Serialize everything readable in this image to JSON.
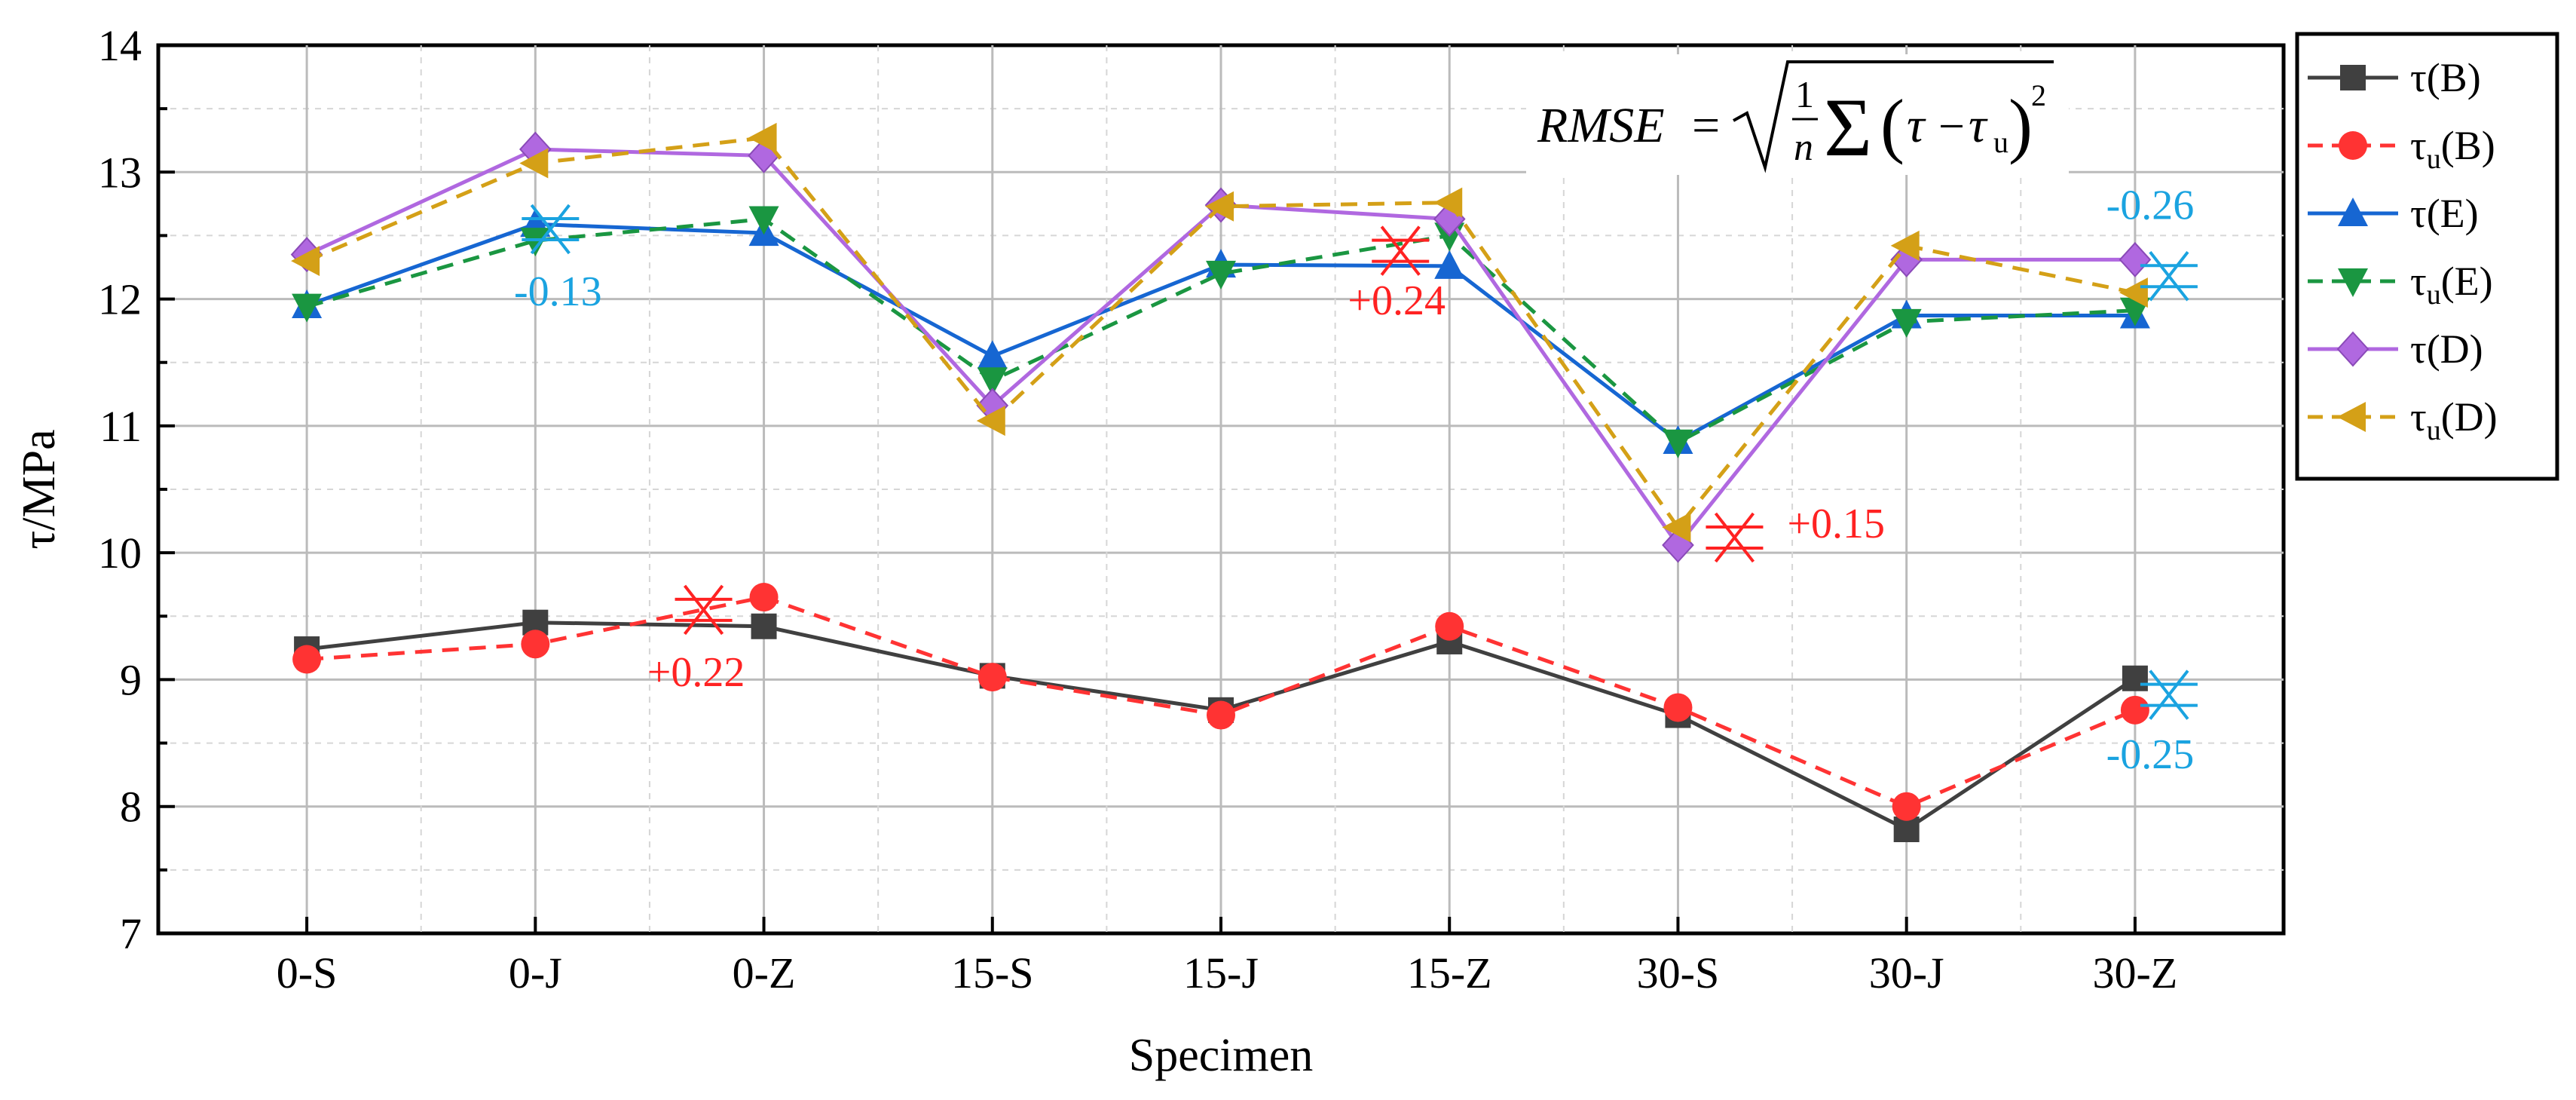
{
  "chart_data": {
    "type": "line",
    "xlabel": "Specimen",
    "ylabel": "τ/MPa",
    "categories": [
      "0-S",
      "0-J",
      "0-Z",
      "15-S",
      "15-J",
      "15-Z",
      "30-S",
      "30-J",
      "30-Z"
    ],
    "ylim": [
      7,
      14
    ],
    "yticks": [
      "7",
      "8",
      "9",
      "10",
      "11",
      "12",
      "13",
      "14"
    ],
    "grid": true,
    "legend_position": "right",
    "formula": "RMSE = √( (1/n) Σ (τ − τu)² )",
    "series": [
      {
        "name": "τ(B)",
        "base": "τ",
        "sub": "",
        "paren": "(B)",
        "color": "#404040",
        "dash": false,
        "marker": "square",
        "values": [
          9.24,
          9.45,
          9.42,
          9.03,
          8.76,
          9.3,
          8.72,
          7.82,
          9.01
        ]
      },
      {
        "name": "τu(B)",
        "base": "τ",
        "sub": "u",
        "paren": "(B)",
        "color": "#ff3333",
        "dash": true,
        "marker": "circle",
        "values": [
          9.16,
          9.28,
          9.65,
          9.02,
          8.72,
          9.42,
          8.78,
          8.0,
          8.76
        ]
      },
      {
        "name": "τ(E)",
        "base": "τ",
        "sub": "",
        "paren": "(E)",
        "color": "#1666d2",
        "dash": false,
        "marker": "triangle-up",
        "values": [
          11.95,
          12.59,
          12.52,
          11.55,
          12.27,
          12.26,
          10.88,
          11.87,
          11.87
        ]
      },
      {
        "name": "τu(E)",
        "base": "τ",
        "sub": "u",
        "paren": "(E)",
        "color": "#1a9641",
        "dash": true,
        "marker": "triangle-down",
        "values": [
          11.94,
          12.46,
          12.63,
          11.36,
          12.2,
          12.5,
          10.87,
          11.82,
          11.91
        ]
      },
      {
        "name": "τ(D)",
        "base": "τ",
        "sub": "",
        "paren": "(D)",
        "color": "#b068e0",
        "dash": false,
        "marker": "diamond",
        "values": [
          12.35,
          13.18,
          13.13,
          11.16,
          12.74,
          12.63,
          10.06,
          12.31,
          12.31
        ]
      },
      {
        "name": "τu(D)",
        "base": "τ",
        "sub": "u",
        "paren": "(D)",
        "color": "#d4a017",
        "dash": true,
        "marker": "triangle-left",
        "values": [
          12.3,
          13.07,
          13.27,
          11.04,
          12.73,
          12.76,
          10.2,
          12.42,
          12.05
        ]
      }
    ],
    "annotations": [
      {
        "text": "-0.13",
        "color": "#1aa3e0",
        "category": "0-J",
        "y": 11.95
      },
      {
        "text": "+0.22",
        "color": "#ff2222",
        "category": "0-Z",
        "y": 8.95
      },
      {
        "text": "+0.24",
        "color": "#ff2222",
        "category": "15-Z",
        "y": 11.88
      },
      {
        "text": "+0.15",
        "color": "#ff2222",
        "category": "30-S",
        "y": 10.12
      },
      {
        "text": "-0.26",
        "color": "#1aa3e0",
        "category": "30-Z",
        "y": 12.63
      },
      {
        "text": "-0.25",
        "color": "#1aa3e0",
        "category": "30-Z",
        "y": 8.3
      }
    ]
  }
}
